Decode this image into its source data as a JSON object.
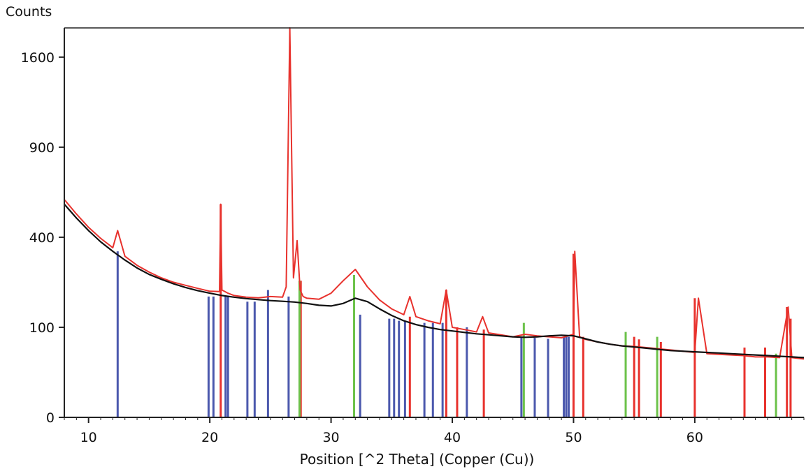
{
  "chart_data": {
    "type": "line",
    "ylabel": "Counts",
    "xlabel": "Position [^2 Theta] (Copper (Cu))",
    "xlim": [
      8,
      69
    ],
    "ylim": [
      0,
      1870
    ],
    "y_scale": "sqrt",
    "x_ticks": [
      10,
      20,
      30,
      40,
      50,
      60
    ],
    "y_ticks": [
      0,
      100,
      400,
      900,
      1600
    ],
    "grid": false,
    "colors": {
      "observed": "#e8322d",
      "background": "#111111",
      "phase1": "#4b58ad",
      "phase2": "#e8322d",
      "phase3": "#6cc24a",
      "axis": "#222222"
    },
    "series": [
      {
        "role": "observed",
        "x": [
          8,
          9,
          10,
          11,
          12,
          12.4,
          13,
          14,
          15,
          16,
          17,
          18,
          19,
          20,
          20.8,
          20.9,
          21,
          21.5,
          22,
          23,
          24,
          25,
          26,
          26.3,
          26.6,
          26.9,
          27.2,
          27.45,
          27.7,
          28,
          29,
          30,
          31,
          32,
          33,
          34,
          35,
          36,
          36.5,
          37,
          38,
          39,
          39.5,
          40,
          41,
          42,
          42.5,
          43,
          44,
          45,
          46,
          47,
          48,
          49,
          50,
          50.1,
          50.5,
          51,
          52,
          53,
          54,
          55,
          56,
          57,
          58,
          59,
          60,
          60.3,
          61,
          62,
          63,
          64,
          65,
          66,
          67,
          67.7,
          68,
          69
        ],
        "y": [
          585,
          510,
          445,
          395,
          355,
          430,
          320,
          285,
          260,
          240,
          225,
          215,
          205,
          196,
          195,
          560,
          200,
          190,
          183,
          178,
          176,
          180,
          178,
          210,
          1870,
          240,
          385,
          200,
          180,
          175,
          172,
          190,
          230,
          270,
          210,
          170,
          145,
          130,
          180,
          125,
          115,
          108,
          200,
          100,
          95,
          90,
          125,
          88,
          84,
          80,
          85,
          82,
          80,
          78,
          85,
          340,
          80,
          75,
          70,
          66,
          63,
          62,
          60,
          58,
          56,
          54,
          52,
          175,
          50,
          49,
          48,
          47,
          45,
          45,
          44,
          150,
          44,
          42
        ]
      },
      {
        "role": "background",
        "x": [
          8,
          9,
          10,
          11,
          12,
          13,
          14,
          15,
          16,
          17,
          18,
          19,
          20,
          21,
          22,
          23,
          24,
          25,
          26,
          27,
          28,
          29,
          30,
          31,
          32,
          33,
          34,
          35,
          36,
          37,
          38,
          39,
          40,
          41,
          42,
          43,
          44,
          45,
          46,
          47,
          48,
          49,
          50,
          51,
          52,
          53,
          54,
          55,
          56,
          57,
          58,
          59,
          60,
          61,
          62,
          63,
          64,
          65,
          66,
          67,
          68,
          69
        ],
        "y": [
          560,
          490,
          430,
          380,
          340,
          305,
          275,
          252,
          235,
          220,
          208,
          198,
          190,
          183,
          178,
          174,
          171,
          168,
          166,
          164,
          160,
          155,
          153,
          160,
          175,
          165,
          145,
          128,
          115,
          106,
          100,
          95,
          92,
          89,
          86,
          84,
          82,
          80,
          79,
          80,
          82,
          83,
          82,
          76,
          70,
          66,
          63,
          61,
          59,
          57,
          55,
          54,
          53,
          52,
          51,
          50,
          49,
          48,
          47,
          46,
          45,
          44
        ]
      }
    ],
    "reference_lines": [
      {
        "color": "blue",
        "x": [
          12.4,
          19.9,
          20.3,
          21.3,
          21.5,
          23.1,
          23.7,
          24.8,
          26.5,
          32.4,
          34.8,
          35.2,
          35.6,
          36.1,
          37.7,
          38.4,
          39.2,
          41.2,
          45.7,
          46.8,
          47.9,
          49.2,
          49.4,
          49.6
        ],
        "height": [
          340,
          180,
          180,
          180,
          180,
          165,
          165,
          200,
          180,
          130,
          120,
          120,
          115,
          115,
          110,
          110,
          110,
          100,
          80,
          78,
          76,
          80,
          80,
          80
        ]
      },
      {
        "color": "red",
        "x": [
          20.9,
          27.5,
          36.5,
          39.5,
          40.4,
          42.6,
          50.0,
          50.8,
          55.0,
          55.4,
          57.2,
          60.0,
          64.1,
          65.8,
          67.6,
          67.9
        ],
        "height": [
          560,
          230,
          125,
          200,
          100,
          95,
          330,
          80,
          80,
          75,
          70,
          175,
          60,
          60,
          150,
          120
        ]
      },
      {
        "color": "green",
        "x": [
          27.4,
          31.9,
          45.9,
          54.3,
          56.9,
          66.7
        ],
        "height": [
          230,
          250,
          110,
          90,
          80,
          50
        ]
      }
    ]
  }
}
